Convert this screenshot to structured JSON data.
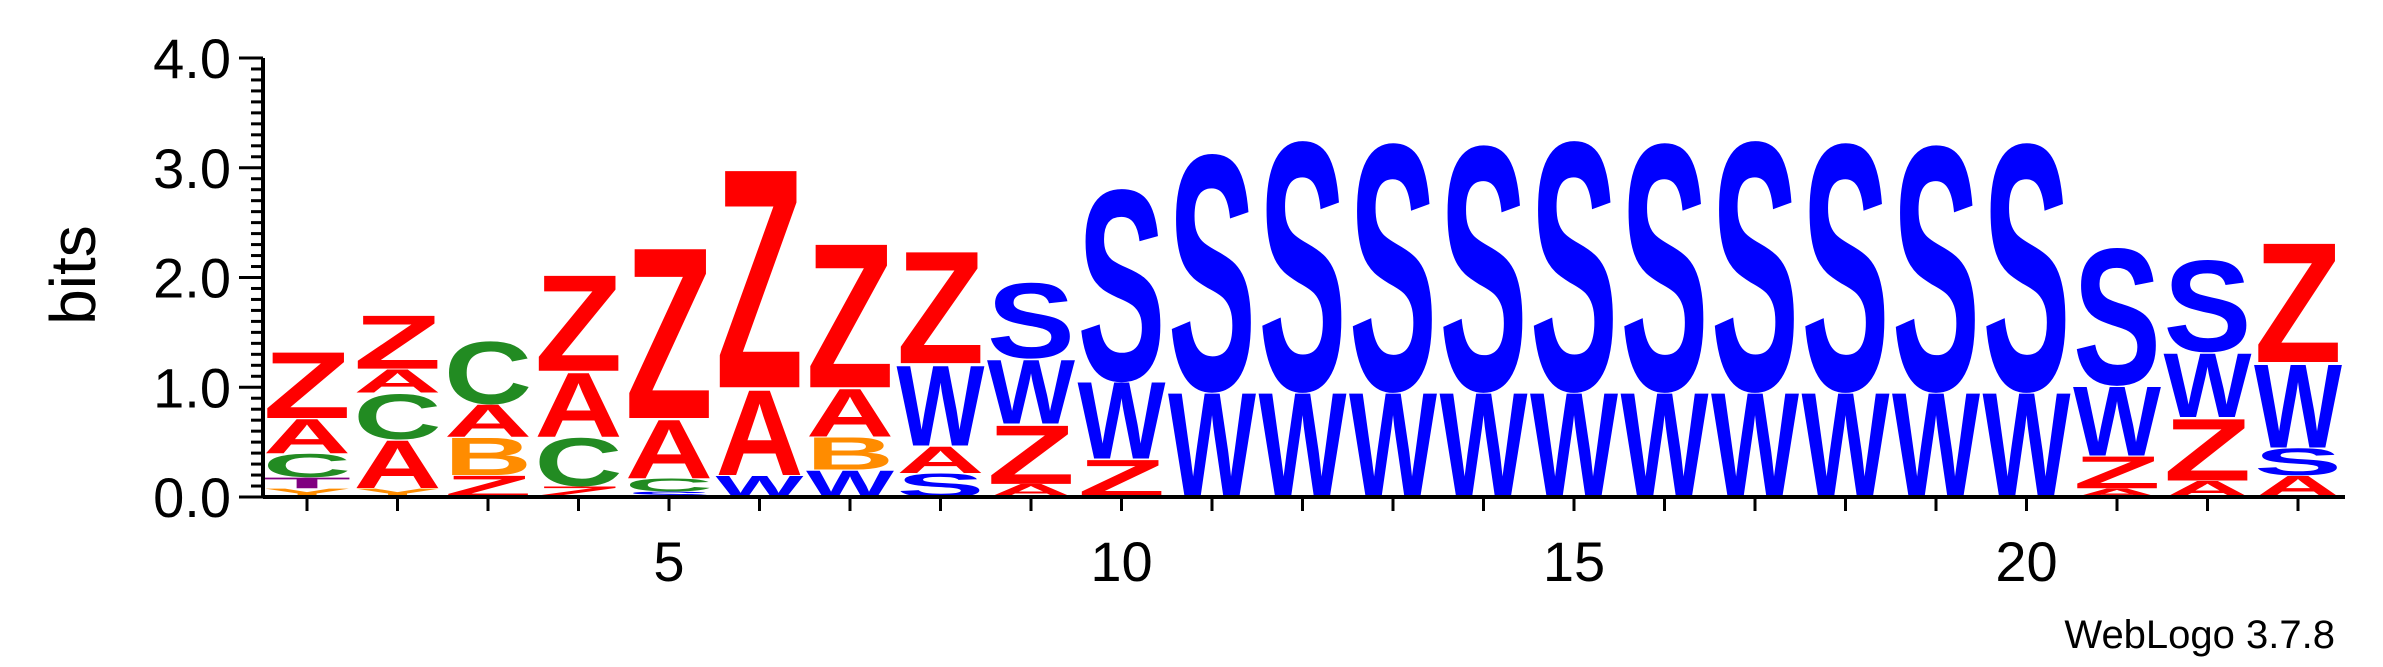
{
  "credit": "WebLogo 3.7.8",
  "chart_data": {
    "type": "sequence-logo",
    "ylabel": "bits",
    "ylim": [
      0,
      4.0
    ],
    "y_ticks": [
      "0.0",
      "1.0",
      "2.0",
      "3.0",
      "4.0"
    ],
    "x_ticks": [
      5,
      10,
      15,
      20
    ],
    "colors": {
      "Z": "#ff0000",
      "A": "#ff0000",
      "S": "#0000ff",
      "W": "#0000ff",
      "C": "#228b22",
      "B": "#ff8c00",
      "T": "#800080",
      "Y": "#ff8c00"
    },
    "positions": [
      {
        "pos": 1,
        "stack": [
          {
            "l": "Y",
            "h": 0.08
          },
          {
            "l": "T",
            "h": 0.1
          },
          {
            "l": "C",
            "h": 0.22
          },
          {
            "l": "A",
            "h": 0.32
          },
          {
            "l": "Z",
            "h": 0.62
          }
        ]
      },
      {
        "pos": 2,
        "stack": [
          {
            "l": "Y",
            "h": 0.08
          },
          {
            "l": "A",
            "h": 0.45
          },
          {
            "l": "C",
            "h": 0.42
          },
          {
            "l": "A",
            "h": 0.22
          },
          {
            "l": "Z",
            "h": 0.5
          }
        ]
      },
      {
        "pos": 3,
        "stack": [
          {
            "l": "Z",
            "h": 0.2
          },
          {
            "l": "B",
            "h": 0.35
          },
          {
            "l": "A",
            "h": 0.3
          },
          {
            "l": "C",
            "h": 0.58
          }
        ]
      },
      {
        "pos": 4,
        "stack": [
          {
            "l": "Z",
            "h": 0.1
          },
          {
            "l": "C",
            "h": 0.45
          },
          {
            "l": "A",
            "h": 0.6
          },
          {
            "l": "Z",
            "h": 0.9
          }
        ]
      },
      {
        "pos": 5,
        "stack": [
          {
            "l": "S",
            "h": 0.05
          },
          {
            "l": "C",
            "h": 0.12
          },
          {
            "l": "A",
            "h": 0.55
          },
          {
            "l": "Z",
            "h": 1.6
          }
        ]
      },
      {
        "pos": 6,
        "stack": [
          {
            "l": "W",
            "h": 0.2
          },
          {
            "l": "A",
            "h": 0.8
          },
          {
            "l": "Z",
            "h": 2.05
          }
        ]
      },
      {
        "pos": 7,
        "stack": [
          {
            "l": "W",
            "h": 0.25
          },
          {
            "l": "B",
            "h": 0.3
          },
          {
            "l": "A",
            "h": 0.45
          },
          {
            "l": "Z",
            "h": 1.35
          }
        ]
      },
      {
        "pos": 8,
        "stack": [
          {
            "l": "S",
            "h": 0.22
          },
          {
            "l": "A",
            "h": 0.25
          },
          {
            "l": "W",
            "h": 0.75
          },
          {
            "l": "Z",
            "h": 1.05
          }
        ]
      },
      {
        "pos": 9,
        "stack": [
          {
            "l": "A",
            "h": 0.12
          },
          {
            "l": "Z",
            "h": 0.55
          },
          {
            "l": "W",
            "h": 0.6
          },
          {
            "l": "S",
            "h": 0.7
          }
        ]
      },
      {
        "pos": 10,
        "stack": [
          {
            "l": "Z",
            "h": 0.35
          },
          {
            "l": "W",
            "h": 0.72
          },
          {
            "l": "S",
            "h": 1.78
          }
        ]
      },
      {
        "pos": 11,
        "stack": [
          {
            "l": "W",
            "h": 0.98
          },
          {
            "l": "S",
            "h": 2.2
          }
        ]
      },
      {
        "pos": 12,
        "stack": [
          {
            "l": "W",
            "h": 0.98
          },
          {
            "l": "S",
            "h": 2.32
          }
        ]
      },
      {
        "pos": 13,
        "stack": [
          {
            "l": "W",
            "h": 0.98
          },
          {
            "l": "S",
            "h": 2.3
          }
        ]
      },
      {
        "pos": 14,
        "stack": [
          {
            "l": "W",
            "h": 0.98
          },
          {
            "l": "S",
            "h": 2.28
          }
        ]
      },
      {
        "pos": 15,
        "stack": [
          {
            "l": "W",
            "h": 0.98
          },
          {
            "l": "S",
            "h": 2.32
          }
        ]
      },
      {
        "pos": 16,
        "stack": [
          {
            "l": "W",
            "h": 0.98
          },
          {
            "l": "S",
            "h": 2.3
          }
        ]
      },
      {
        "pos": 17,
        "stack": [
          {
            "l": "W",
            "h": 0.98
          },
          {
            "l": "S",
            "h": 2.32
          }
        ]
      },
      {
        "pos": 18,
        "stack": [
          {
            "l": "W",
            "h": 0.98
          },
          {
            "l": "S",
            "h": 2.3
          }
        ]
      },
      {
        "pos": 19,
        "stack": [
          {
            "l": "W",
            "h": 0.98
          },
          {
            "l": "S",
            "h": 2.28
          }
        ]
      },
      {
        "pos": 20,
        "stack": [
          {
            "l": "W",
            "h": 0.98
          },
          {
            "l": "S",
            "h": 2.3
          }
        ]
      },
      {
        "pos": 21,
        "stack": [
          {
            "l": "A",
            "h": 0.08
          },
          {
            "l": "Z",
            "h": 0.3
          },
          {
            "l": "W",
            "h": 0.65
          },
          {
            "l": "S",
            "h": 1.27
          }
        ]
      },
      {
        "pos": 22,
        "stack": [
          {
            "l": "A",
            "h": 0.15
          },
          {
            "l": "Z",
            "h": 0.58
          },
          {
            "l": "W",
            "h": 0.6
          },
          {
            "l": "S",
            "h": 0.85
          }
        ]
      },
      {
        "pos": 23,
        "stack": [
          {
            "l": "A",
            "h": 0.2
          },
          {
            "l": "S",
            "h": 0.25
          },
          {
            "l": "W",
            "h": 0.78
          },
          {
            "l": "Z",
            "h": 1.12
          }
        ]
      }
    ]
  }
}
